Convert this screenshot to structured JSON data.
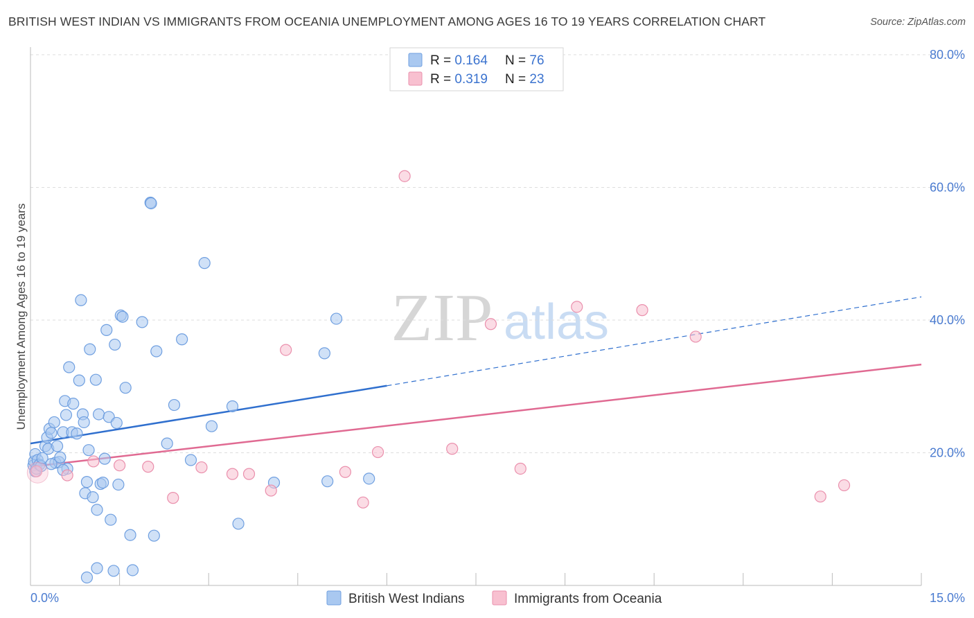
{
  "title": "BRITISH WEST INDIAN VS IMMIGRANTS FROM OCEANIA UNEMPLOYMENT AMONG AGES 16 TO 19 YEARS CORRELATION CHART",
  "source": "Source: ZipAtlas.com",
  "watermark": {
    "zip": "ZIP",
    "atlas": "atlas"
  },
  "colors": {
    "blue_fill": "#a9c8f0",
    "blue_stroke": "#6f9fe0",
    "blue_line": "#2f6fce",
    "pink_fill": "#f8c0d0",
    "pink_stroke": "#ea8fac",
    "pink_line": "#e06a92",
    "value_text": "#3b73cf",
    "grid": "#dddddd"
  },
  "legend": {
    "rows": [
      {
        "r_label": "R = ",
        "r_value": "0.164",
        "n_label": "N = ",
        "n_value": "76"
      },
      {
        "r_label": "R = ",
        "r_value": "0.319",
        "n_label": "N = ",
        "n_value": "23"
      }
    ]
  },
  "chart_data": {
    "type": "scatter",
    "title": "BRITISH WEST INDIAN VS IMMIGRANTS FROM OCEANIA UNEMPLOYMENT AMONG AGES 16 TO 19 YEARS CORRELATION CHART",
    "xlabel": "",
    "ylabel": "Unemployment Among Ages 16 to 19 years",
    "xlim": [
      0,
      15
    ],
    "ylim": [
      0,
      82
    ],
    "y_ticks": [
      20,
      40,
      60,
      80
    ],
    "y_tick_labels": [
      "20.0%",
      "40.0%",
      "60.0%",
      "80.0%"
    ],
    "x_tick_labels": [
      "0.0%",
      "15.0%"
    ],
    "grid": true,
    "legend_position": "top-center",
    "series": [
      {
        "name": "British West Indians",
        "r": 0.164,
        "n": 76,
        "trend": {
          "x": [
            0,
            6
          ],
          "y": [
            21.4,
            30.1
          ],
          "dashed_extension_to_x": 15,
          "dashed_end_y": 43.5
        },
        "points": [
          [
            0.05,
            18.1
          ],
          [
            0.06,
            18.7
          ],
          [
            0.08,
            19.8
          ],
          [
            0.08,
            17.2
          ],
          [
            0.1,
            17.6
          ],
          [
            0.12,
            18.9
          ],
          [
            0.15,
            18.2
          ],
          [
            0.18,
            18.0
          ],
          [
            0.2,
            19.2
          ],
          [
            0.25,
            21.0
          ],
          [
            0.28,
            22.3
          ],
          [
            0.3,
            20.6
          ],
          [
            0.32,
            23.6
          ],
          [
            0.35,
            23.0
          ],
          [
            0.4,
            24.6
          ],
          [
            0.42,
            18.5
          ],
          [
            0.45,
            21.0
          ],
          [
            0.48,
            18.6
          ],
          [
            0.5,
            19.3
          ],
          [
            0.55,
            23.1
          ],
          [
            0.58,
            27.8
          ],
          [
            0.6,
            25.7
          ],
          [
            0.62,
            17.6
          ],
          [
            0.65,
            32.9
          ],
          [
            0.7,
            23.1
          ],
          [
            0.72,
            27.4
          ],
          [
            0.78,
            22.9
          ],
          [
            0.82,
            30.9
          ],
          [
            0.85,
            43.0
          ],
          [
            0.88,
            25.8
          ],
          [
            0.9,
            24.6
          ],
          [
            0.92,
            13.9
          ],
          [
            0.95,
            15.6
          ],
          [
            0.98,
            20.4
          ],
          [
            1.0,
            35.6
          ],
          [
            1.05,
            13.3
          ],
          [
            1.1,
            31.0
          ],
          [
            1.12,
            11.4
          ],
          [
            1.15,
            25.8
          ],
          [
            1.18,
            15.3
          ],
          [
            1.22,
            15.5
          ],
          [
            1.25,
            19.1
          ],
          [
            1.28,
            38.5
          ],
          [
            1.32,
            25.4
          ],
          [
            1.35,
            9.9
          ],
          [
            1.42,
            36.3
          ],
          [
            1.45,
            24.5
          ],
          [
            1.48,
            15.2
          ],
          [
            1.52,
            40.7
          ],
          [
            1.55,
            40.5
          ],
          [
            1.6,
            29.8
          ],
          [
            1.68,
            7.6
          ],
          [
            1.88,
            39.7
          ],
          [
            2.02,
            57.7
          ],
          [
            2.03,
            57.6
          ],
          [
            2.08,
            7.5
          ],
          [
            2.12,
            35.3
          ],
          [
            2.3,
            21.4
          ],
          [
            2.42,
            27.2
          ],
          [
            2.55,
            37.1
          ],
          [
            2.7,
            18.9
          ],
          [
            2.93,
            48.6
          ],
          [
            3.05,
            24.0
          ],
          [
            3.4,
            27.0
          ],
          [
            3.5,
            9.3
          ],
          [
            4.1,
            15.5
          ],
          [
            4.95,
            35.0
          ],
          [
            5.0,
            15.7
          ],
          [
            5.15,
            40.2
          ],
          [
            5.7,
            16.1
          ],
          [
            0.95,
            1.2
          ],
          [
            1.12,
            2.6
          ],
          [
            1.4,
            2.2
          ],
          [
            1.72,
            2.3
          ],
          [
            0.55,
            17.4
          ],
          [
            0.35,
            18.3
          ]
        ]
      },
      {
        "name": "Immigrants from Oceania",
        "r": 0.319,
        "n": 23,
        "trend": {
          "x": [
            0,
            15
          ],
          "y": [
            17.9,
            33.3
          ]
        },
        "points": [
          [
            0.1,
            17.2
          ],
          [
            0.62,
            16.6
          ],
          [
            1.06,
            18.7
          ],
          [
            1.5,
            18.1
          ],
          [
            1.98,
            17.9
          ],
          [
            2.4,
            13.2
          ],
          [
            2.88,
            17.8
          ],
          [
            3.4,
            16.8
          ],
          [
            3.68,
            16.8
          ],
          [
            4.05,
            14.3
          ],
          [
            4.3,
            35.5
          ],
          [
            5.3,
            17.1
          ],
          [
            5.6,
            12.5
          ],
          [
            5.85,
            20.1
          ],
          [
            6.3,
            61.7
          ],
          [
            7.1,
            20.6
          ],
          [
            7.75,
            39.4
          ],
          [
            8.25,
            17.6
          ],
          [
            9.2,
            42.0
          ],
          [
            10.3,
            41.5
          ],
          [
            11.2,
            37.5
          ],
          [
            13.3,
            13.4
          ],
          [
            13.7,
            15.1
          ]
        ]
      }
    ]
  }
}
